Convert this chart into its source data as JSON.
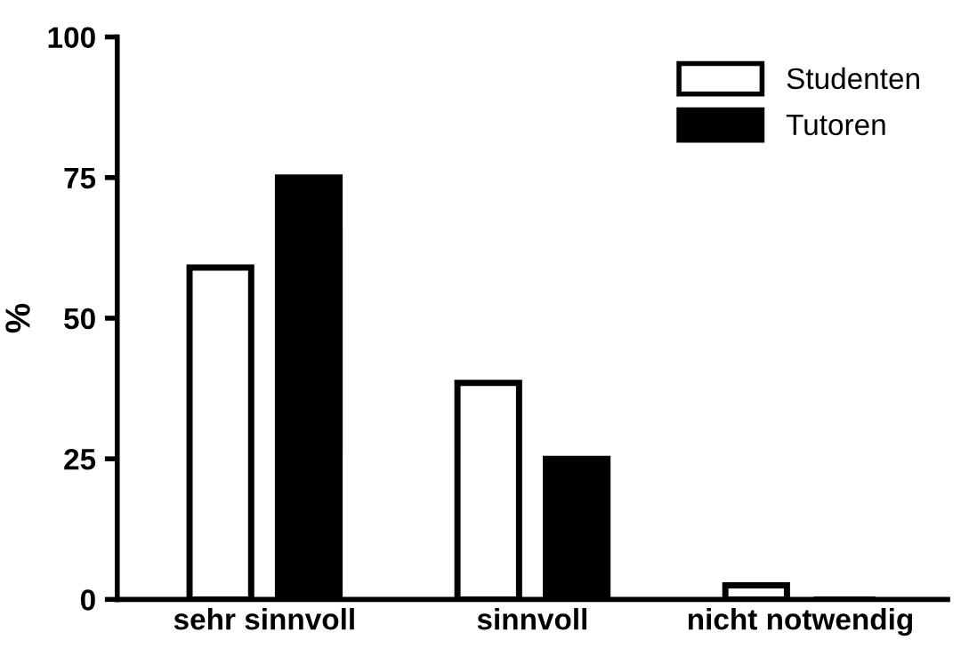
{
  "chart_data": {
    "type": "bar",
    "ylabel": "%",
    "categories": [
      "sehr sinnvoll",
      "sinnvoll",
      "nicht notwendig"
    ],
    "series": [
      {
        "name": "Studenten",
        "color": "#ffffff",
        "values": [
          59,
          38.5,
          2.5
        ]
      },
      {
        "name": "Tutoren",
        "color": "#000000",
        "values": [
          75,
          25,
          0
        ]
      }
    ],
    "ylim": [
      0,
      100
    ],
    "yticks": [
      0,
      25,
      50,
      75,
      100
    ],
    "grid": false,
    "legend": "top right"
  }
}
